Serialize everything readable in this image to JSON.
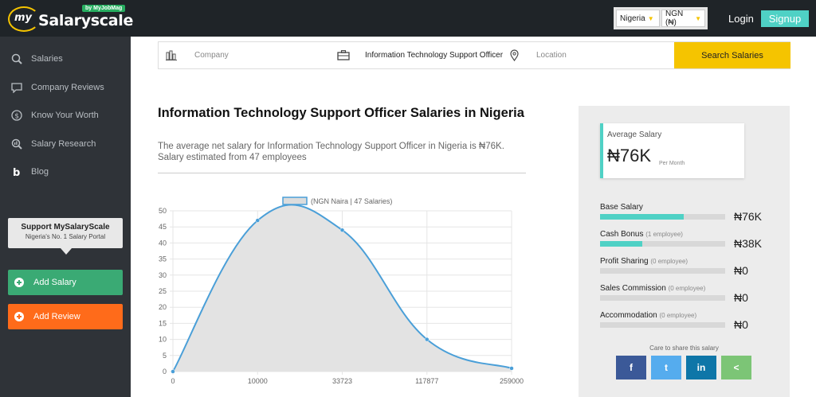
{
  "header": {
    "logo_prefix": "my",
    "logo_name": "Salaryscale",
    "logo_badge": "by MyJobMag",
    "country_select": "Nigeria",
    "currency_select": "NGN (₦)",
    "login": "Login",
    "signup": "Signup"
  },
  "sidebar": {
    "items": [
      {
        "label": "Salaries",
        "icon": "search-money-icon"
      },
      {
        "label": "Company Reviews",
        "icon": "chat-icon"
      },
      {
        "label": "Know Your Worth",
        "icon": "dollar-icon"
      },
      {
        "label": "Salary Research",
        "icon": "research-icon"
      },
      {
        "label": "Blog",
        "icon": "blog-icon"
      }
    ],
    "support_title": "Support MySalaryScale",
    "support_sub": "Nigeria's No. 1 Salary Portal",
    "add_salary": "Add Salary",
    "add_review": "Add Review"
  },
  "search": {
    "company_placeholder": "Company",
    "job_value": "Information Technology Support Officer",
    "location_placeholder": "Location",
    "button": "Search Salaries"
  },
  "main": {
    "title": "Information Technology Support Officer Salaries in Nigeria",
    "description": "The average net salary for Information Technology Support Officer in Nigeria is ₦76K. Salary estimated from 47 employees"
  },
  "chart_data": {
    "type": "area",
    "legend": "(NGN Naira | 47 Salaries)",
    "categories": [
      "0",
      "10000",
      "33723",
      "117877",
      "259000"
    ],
    "values": [
      0,
      47,
      44,
      10,
      1
    ],
    "ylim": [
      0,
      50
    ],
    "yticks": [
      0,
      5,
      10,
      15,
      20,
      25,
      30,
      35,
      40,
      45,
      50
    ],
    "grid": true,
    "legend_placement": "top",
    "line_color": "#4a9fd8",
    "fill_color": "#e3e3e3"
  },
  "summary": {
    "avg_label": "Average Salary",
    "avg_value": "₦76K",
    "avg_period": "Per Month",
    "components": [
      {
        "label": "Base Salary",
        "note": "",
        "value": "₦76K",
        "fill": 0.67
      },
      {
        "label": "Cash Bonus",
        "note": "(1 employee)",
        "value": "₦38K",
        "fill": 0.34
      },
      {
        "label": "Profit Sharing",
        "note": "(0 employee)",
        "value": "₦0",
        "fill": 0
      },
      {
        "label": "Sales Commission",
        "note": "(0 employee)",
        "value": "₦0",
        "fill": 0
      },
      {
        "label": "Accommodation",
        "note": "(0 employee)",
        "value": "₦0",
        "fill": 0
      }
    ],
    "share_label": "Care to share this salary",
    "share_buttons": [
      {
        "glyph": "f",
        "icon": "facebook-icon",
        "color": "#3b5998"
      },
      {
        "glyph": "t",
        "icon": "twitter-icon",
        "color": "#55acee"
      },
      {
        "glyph": "in",
        "icon": "linkedin-icon",
        "color": "#0e76a8"
      },
      {
        "glyph": "<",
        "icon": "share-icon",
        "color": "#7cc576"
      }
    ]
  }
}
